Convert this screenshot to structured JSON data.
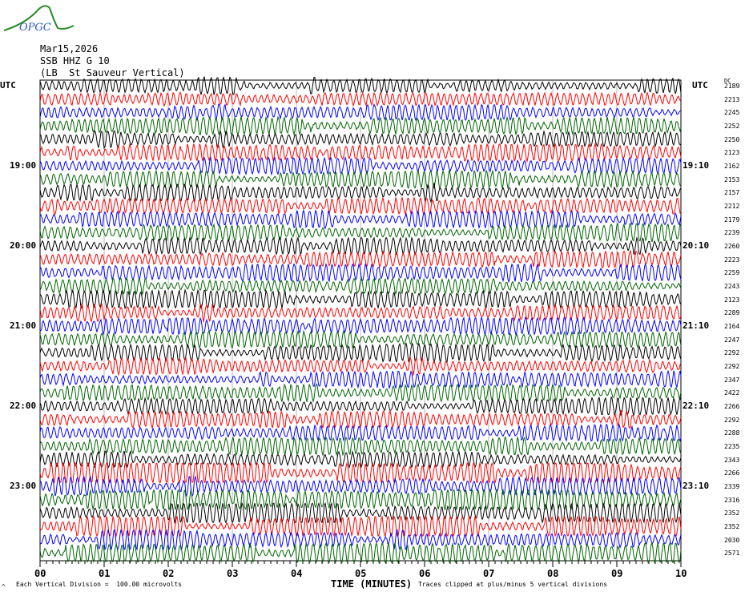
{
  "header": {
    "logo_text": "OPGC",
    "date": "Mar15,2026",
    "station": "SSB HHZ G 10",
    "location": "(LB  St Sauveur Vertical)"
  },
  "footer": {
    "scale_note": "Each Vertical Division =  100.00 microvolts",
    "xlabel": "TIME (MINUTES)",
    "clip_note": "Traces clipped at plus/minus 5 vertical divisions",
    "corner_mark": "^"
  },
  "chart_data": {
    "type": "line",
    "title": "SSB HHZ G 10",
    "xlabel": "TIME (MINUTES)",
    "left_axis_label": "UTC",
    "right_axis_label": "UTC",
    "dc_header": "DC",
    "xlim": [
      0,
      10
    ],
    "x_ticks": [
      "00",
      "01",
      "02",
      "03",
      "04",
      "05",
      "06",
      "07",
      "08",
      "09",
      "10"
    ],
    "left_hour_labels": [
      "19:00",
      "20:00",
      "21:00",
      "22:00",
      "23:00"
    ],
    "right_hour_labels": [
      "19:10",
      "20:10",
      "21:10",
      "22:10",
      "23:10"
    ],
    "hour_label_rows": [
      6,
      12,
      18,
      24,
      30
    ],
    "trace_colors": [
      "#000000",
      "#ff0000",
      "#0000ff",
      "#006400"
    ],
    "row_count": 36,
    "dc_offsets": [
      "2189",
      "2213",
      "2245",
      "2252",
      "2250",
      "2123",
      "2162",
      "2153",
      "2157",
      "2212",
      "2179",
      "2239",
      "2260",
      "2223",
      "2259",
      "2243",
      "2123",
      "2289",
      "2164",
      "2247",
      "2292",
      "2292",
      "2347",
      "2422",
      "2266",
      "2292",
      "2288",
      "2235",
      "2343",
      "2266",
      "2339",
      "2316",
      "2352",
      "2352",
      "2030",
      "2571"
    ]
  }
}
